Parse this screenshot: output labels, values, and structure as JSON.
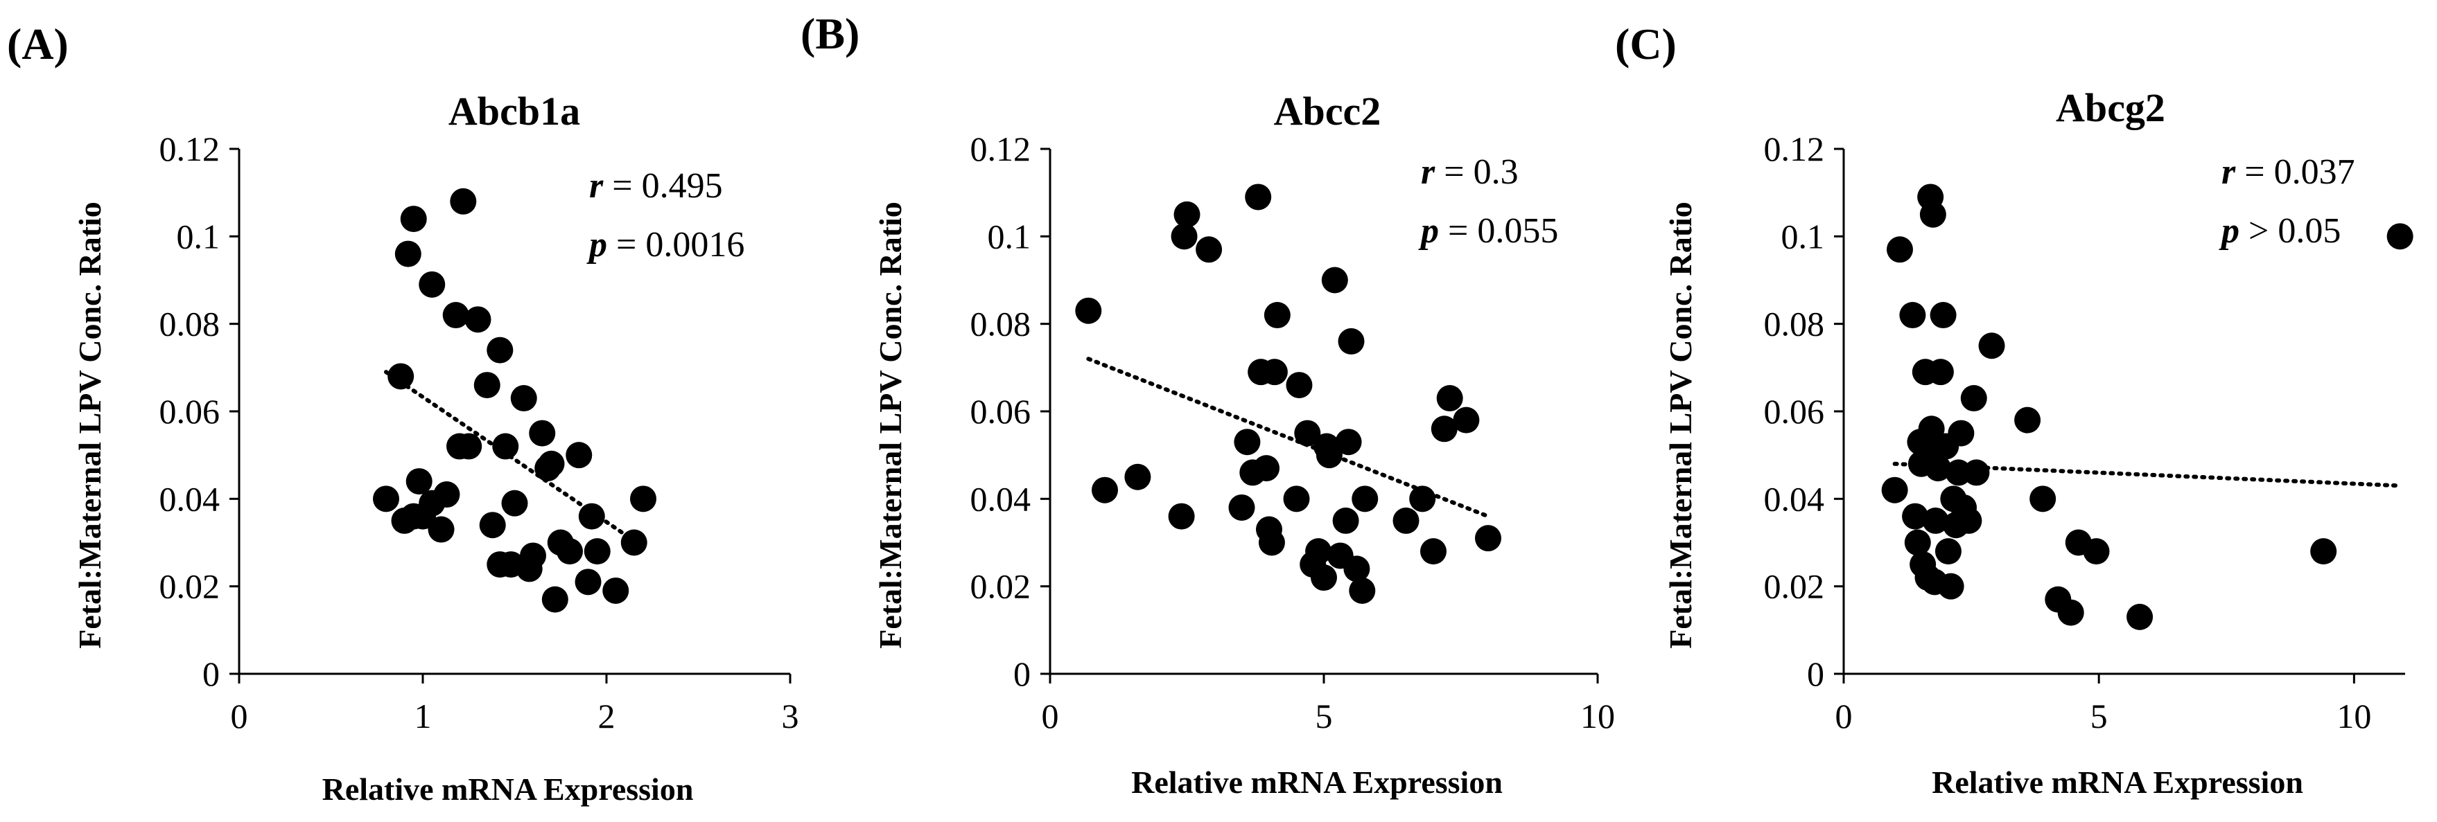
{
  "chart_data": [
    {
      "panel": "(A)",
      "type": "scatter",
      "title": "Abcb1a",
      "xlabel": "Relative mRNA Expression",
      "ylabel": "Fetal:Maternal LPV Conc. Ratio",
      "xlim": [
        0,
        3
      ],
      "ylim": [
        0,
        0.12
      ],
      "xticks": [
        "0",
        "1",
        "2",
        "3"
      ],
      "yticks": [
        "0",
        "0.02",
        "0.04",
        "0.06",
        "0.08",
        "0.1",
        "0.12"
      ],
      "stats": {
        "r_symbol": "r",
        "r_text": "= 0.495",
        "p_symbol": "p",
        "p_text": "= 0.0016"
      },
      "trendline": {
        "x": [
          0.8,
          2.2
        ],
        "y": [
          0.069,
          0.029
        ]
      },
      "points": {
        "x": [
          0.8,
          0.88,
          0.92,
          0.95,
          0.98,
          1.0,
          1.05,
          1.1,
          1.13,
          1.18,
          1.22,
          1.25,
          1.3,
          1.35,
          1.42,
          1.45,
          1.5,
          0.9,
          0.95,
          1.05,
          1.2,
          1.38,
          1.48,
          1.55,
          1.6,
          1.65,
          1.68,
          1.7,
          1.75,
          1.8,
          1.85,
          1.9,
          1.95,
          2.05,
          2.15,
          2.2,
          1.42,
          1.58,
          1.72,
          1.92
        ],
        "y": [
          0.04,
          0.068,
          0.096,
          0.104,
          0.044,
          0.036,
          0.089,
          0.033,
          0.041,
          0.082,
          0.108,
          0.052,
          0.081,
          0.066,
          0.074,
          0.052,
          0.039,
          0.035,
          0.036,
          0.039,
          0.052,
          0.034,
          0.025,
          0.063,
          0.027,
          0.055,
          0.047,
          0.048,
          0.03,
          0.028,
          0.05,
          0.021,
          0.028,
          0.019,
          0.03,
          0.04,
          0.025,
          0.024,
          0.017,
          0.036
        ]
      }
    },
    {
      "panel": "(B)",
      "type": "scatter",
      "title": "Abcc2",
      "xlabel": "Relative mRNA Expression",
      "ylabel": "Fetal:Maternal LPV Conc. Ratio",
      "xlim": [
        0,
        10
      ],
      "ylim": [
        0,
        0.12
      ],
      "xticks": [
        "0",
        "5",
        "10"
      ],
      "yticks": [
        "0",
        "0.02",
        "0.04",
        "0.06",
        "0.08",
        "0.1",
        "0.12"
      ],
      "stats": {
        "r_symbol": "r",
        "r_text": "= 0.3",
        "p_symbol": "p",
        "p_text": "= 0.055"
      },
      "trendline": {
        "x": [
          0.7,
          8.0
        ],
        "y": [
          0.072,
          0.036
        ]
      },
      "points": {
        "x": [
          0.7,
          1.0,
          1.6,
          2.4,
          2.45,
          2.5,
          2.9,
          3.5,
          3.6,
          3.7,
          3.8,
          3.85,
          3.95,
          4.0,
          4.05,
          4.1,
          4.15,
          4.5,
          4.55,
          4.7,
          4.8,
          4.9,
          5.0,
          5.1,
          5.2,
          5.3,
          5.4,
          5.45,
          5.5,
          5.6,
          5.7,
          5.75,
          6.5,
          6.8,
          7.0,
          7.2,
          7.3,
          7.6,
          8.0,
          5.05
        ],
        "y": [
          0.083,
          0.042,
          0.045,
          0.036,
          0.1,
          0.105,
          0.097,
          0.038,
          0.053,
          0.046,
          0.109,
          0.069,
          0.047,
          0.033,
          0.03,
          0.069,
          0.082,
          0.04,
          0.066,
          0.055,
          0.025,
          0.028,
          0.022,
          0.05,
          0.09,
          0.027,
          0.035,
          0.053,
          0.076,
          0.024,
          0.019,
          0.04,
          0.035,
          0.04,
          0.028,
          0.056,
          0.063,
          0.058,
          0.031,
          0.052
        ]
      }
    },
    {
      "panel": "(C)",
      "type": "scatter",
      "title": "Abcg2",
      "xlabel": "Relative mRNA Expression",
      "ylabel": "Fetal:Maternal LPV Conc. Ratio",
      "xlim": [
        0,
        11
      ],
      "ylim": [
        0,
        0.12
      ],
      "xticks": [
        "0",
        "5",
        "10"
      ],
      "yticks": [
        "0",
        "0.02",
        "0.04",
        "0.06",
        "0.08",
        "0.1",
        "0.12"
      ],
      "stats": {
        "r_symbol": "r",
        "r_text": "= 0.037",
        "p_symbol": "p",
        "p_text": "> 0.05"
      },
      "trendline": {
        "x": [
          1.0,
          10.9
        ],
        "y": [
          0.048,
          0.043
        ]
      },
      "points": {
        "x": [
          1.0,
          1.1,
          1.35,
          1.4,
          1.45,
          1.5,
          1.55,
          1.6,
          1.65,
          1.7,
          1.72,
          1.75,
          1.8,
          1.85,
          1.9,
          1.95,
          2.0,
          2.05,
          2.1,
          2.15,
          2.2,
          2.25,
          2.3,
          2.35,
          2.45,
          2.55,
          2.6,
          2.9,
          3.6,
          3.9,
          4.2,
          4.45,
          4.6,
          4.95,
          5.8,
          9.4,
          10.9,
          1.52,
          1.62,
          1.78
        ],
        "y": [
          0.042,
          0.097,
          0.082,
          0.036,
          0.03,
          0.053,
          0.025,
          0.069,
          0.022,
          0.109,
          0.056,
          0.105,
          0.035,
          0.047,
          0.069,
          0.082,
          0.052,
          0.028,
          0.02,
          0.04,
          0.034,
          0.046,
          0.055,
          0.038,
          0.035,
          0.063,
          0.046,
          0.075,
          0.058,
          0.04,
          0.017,
          0.014,
          0.03,
          0.028,
          0.013,
          0.028,
          0.1,
          0.048,
          0.052,
          0.021
        ]
      }
    }
  ]
}
